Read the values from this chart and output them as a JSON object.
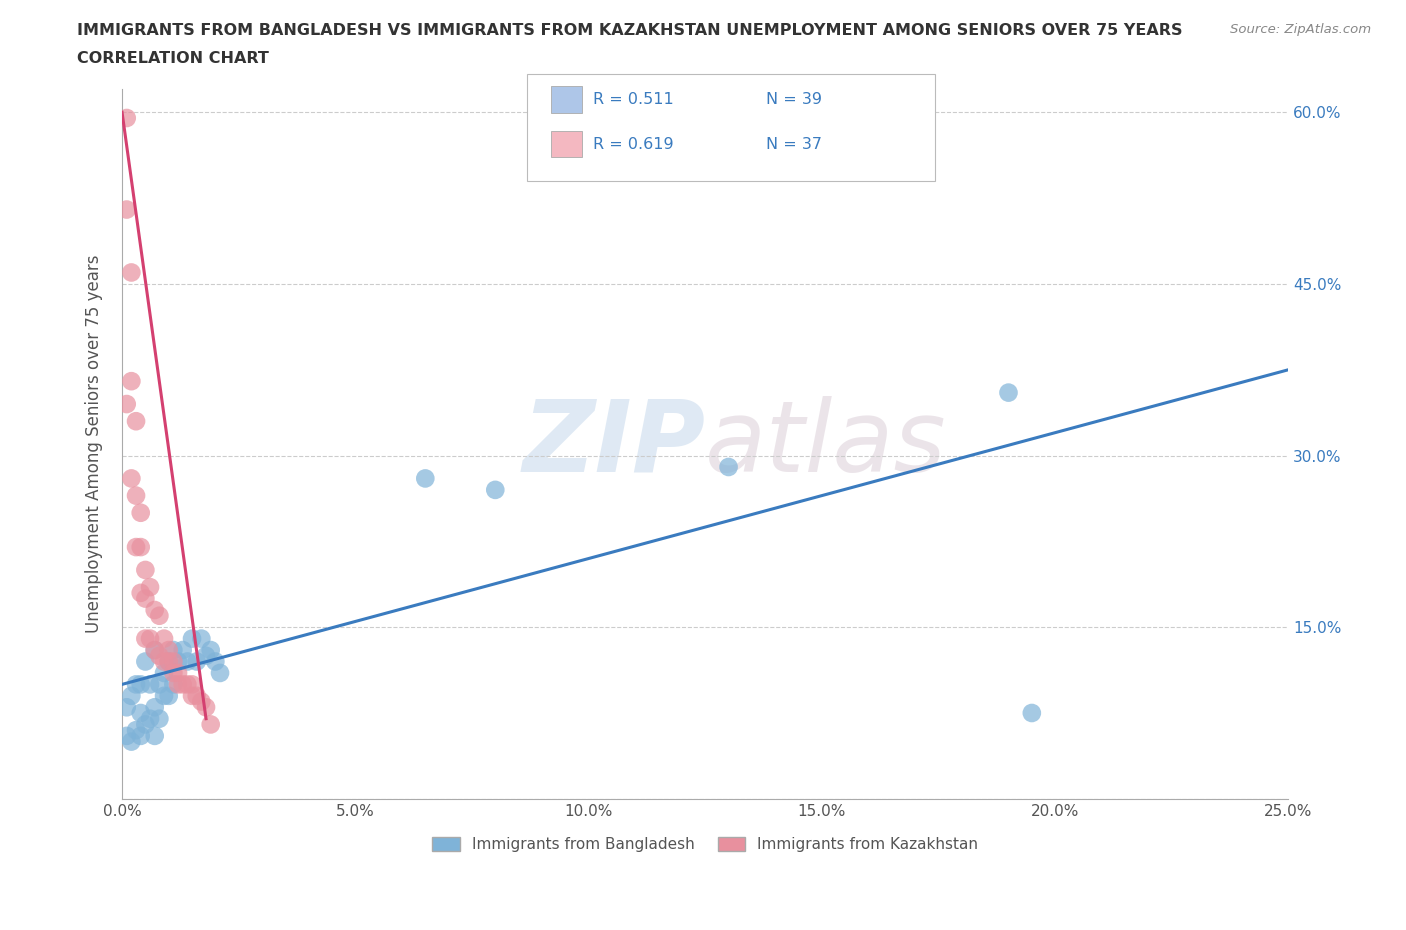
{
  "title_line1": "IMMIGRANTS FROM BANGLADESH VS IMMIGRANTS FROM KAZAKHSTAN UNEMPLOYMENT AMONG SENIORS OVER 75 YEARS",
  "title_line2": "CORRELATION CHART",
  "source": "Source: ZipAtlas.com",
  "ylabel": "Unemployment Among Seniors over 75 years",
  "watermark_zip": "ZIP",
  "watermark_atlas": "atlas",
  "xlim": [
    0.0,
    0.25
  ],
  "ylim": [
    0.0,
    0.62
  ],
  "x_ticks": [
    0.0,
    0.05,
    0.1,
    0.15,
    0.2,
    0.25
  ],
  "x_tick_labels": [
    "0.0%",
    "5.0%",
    "10.0%",
    "15.0%",
    "20.0%",
    "25.0%"
  ],
  "y_ticks": [
    0.0,
    0.15,
    0.3,
    0.45,
    0.6
  ],
  "y_tick_labels_left": [
    "",
    "",
    "",
    "",
    ""
  ],
  "y_tick_labels_right": [
    "",
    "15.0%",
    "30.0%",
    "45.0%",
    "60.0%"
  ],
  "legend_entries": [
    {
      "label": "Immigrants from Bangladesh",
      "color": "#aec6e8",
      "R": "0.511",
      "N": "39"
    },
    {
      "label": "Immigrants from Kazakhstan",
      "color": "#f4b8c1",
      "R": "0.619",
      "N": "37"
    }
  ],
  "blue_scatter_x": [
    0.001,
    0.001,
    0.002,
    0.002,
    0.003,
    0.003,
    0.004,
    0.004,
    0.004,
    0.005,
    0.005,
    0.006,
    0.006,
    0.007,
    0.007,
    0.007,
    0.008,
    0.008,
    0.009,
    0.009,
    0.01,
    0.01,
    0.011,
    0.011,
    0.012,
    0.013,
    0.014,
    0.015,
    0.016,
    0.017,
    0.018,
    0.019,
    0.02,
    0.021,
    0.065,
    0.08,
    0.13,
    0.19,
    0.195
  ],
  "blue_scatter_y": [
    0.055,
    0.08,
    0.05,
    0.09,
    0.06,
    0.1,
    0.055,
    0.075,
    0.1,
    0.065,
    0.12,
    0.07,
    0.1,
    0.055,
    0.08,
    0.13,
    0.07,
    0.1,
    0.09,
    0.11,
    0.09,
    0.12,
    0.1,
    0.13,
    0.12,
    0.13,
    0.12,
    0.14,
    0.12,
    0.14,
    0.125,
    0.13,
    0.12,
    0.11,
    0.28,
    0.27,
    0.29,
    0.355,
    0.075
  ],
  "pink_scatter_x": [
    0.001,
    0.001,
    0.001,
    0.002,
    0.002,
    0.002,
    0.003,
    0.003,
    0.003,
    0.004,
    0.004,
    0.004,
    0.005,
    0.005,
    0.005,
    0.006,
    0.006,
    0.007,
    0.007,
    0.008,
    0.008,
    0.009,
    0.009,
    0.01,
    0.01,
    0.011,
    0.011,
    0.012,
    0.012,
    0.013,
    0.014,
    0.015,
    0.015,
    0.016,
    0.017,
    0.018,
    0.019
  ],
  "pink_scatter_y": [
    0.595,
    0.515,
    0.345,
    0.46,
    0.365,
    0.28,
    0.33,
    0.265,
    0.22,
    0.25,
    0.22,
    0.18,
    0.2,
    0.175,
    0.14,
    0.185,
    0.14,
    0.165,
    0.13,
    0.16,
    0.125,
    0.14,
    0.12,
    0.13,
    0.12,
    0.12,
    0.11,
    0.11,
    0.1,
    0.1,
    0.1,
    0.1,
    0.09,
    0.09,
    0.085,
    0.08,
    0.065
  ],
  "blue_line_x": [
    0.0,
    0.25
  ],
  "blue_line_y": [
    0.1,
    0.375
  ],
  "pink_line_x": [
    0.0,
    0.018
  ],
  "pink_line_y": [
    0.6,
    0.07
  ],
  "dot_color_blue": "#7fb3d8",
  "dot_color_pink": "#e8909e",
  "line_color_blue": "#3a7bbf",
  "line_color_pink": "#d44070",
  "background_color": "#ffffff",
  "grid_color": "#cccccc",
  "title_color": "#333333",
  "axis_label_color": "#555555",
  "tick_color_left": "#555555",
  "tick_color_right": "#3a7bbf",
  "R_N_color": "#3a7bbf",
  "legend_box_edge": "#cccccc"
}
